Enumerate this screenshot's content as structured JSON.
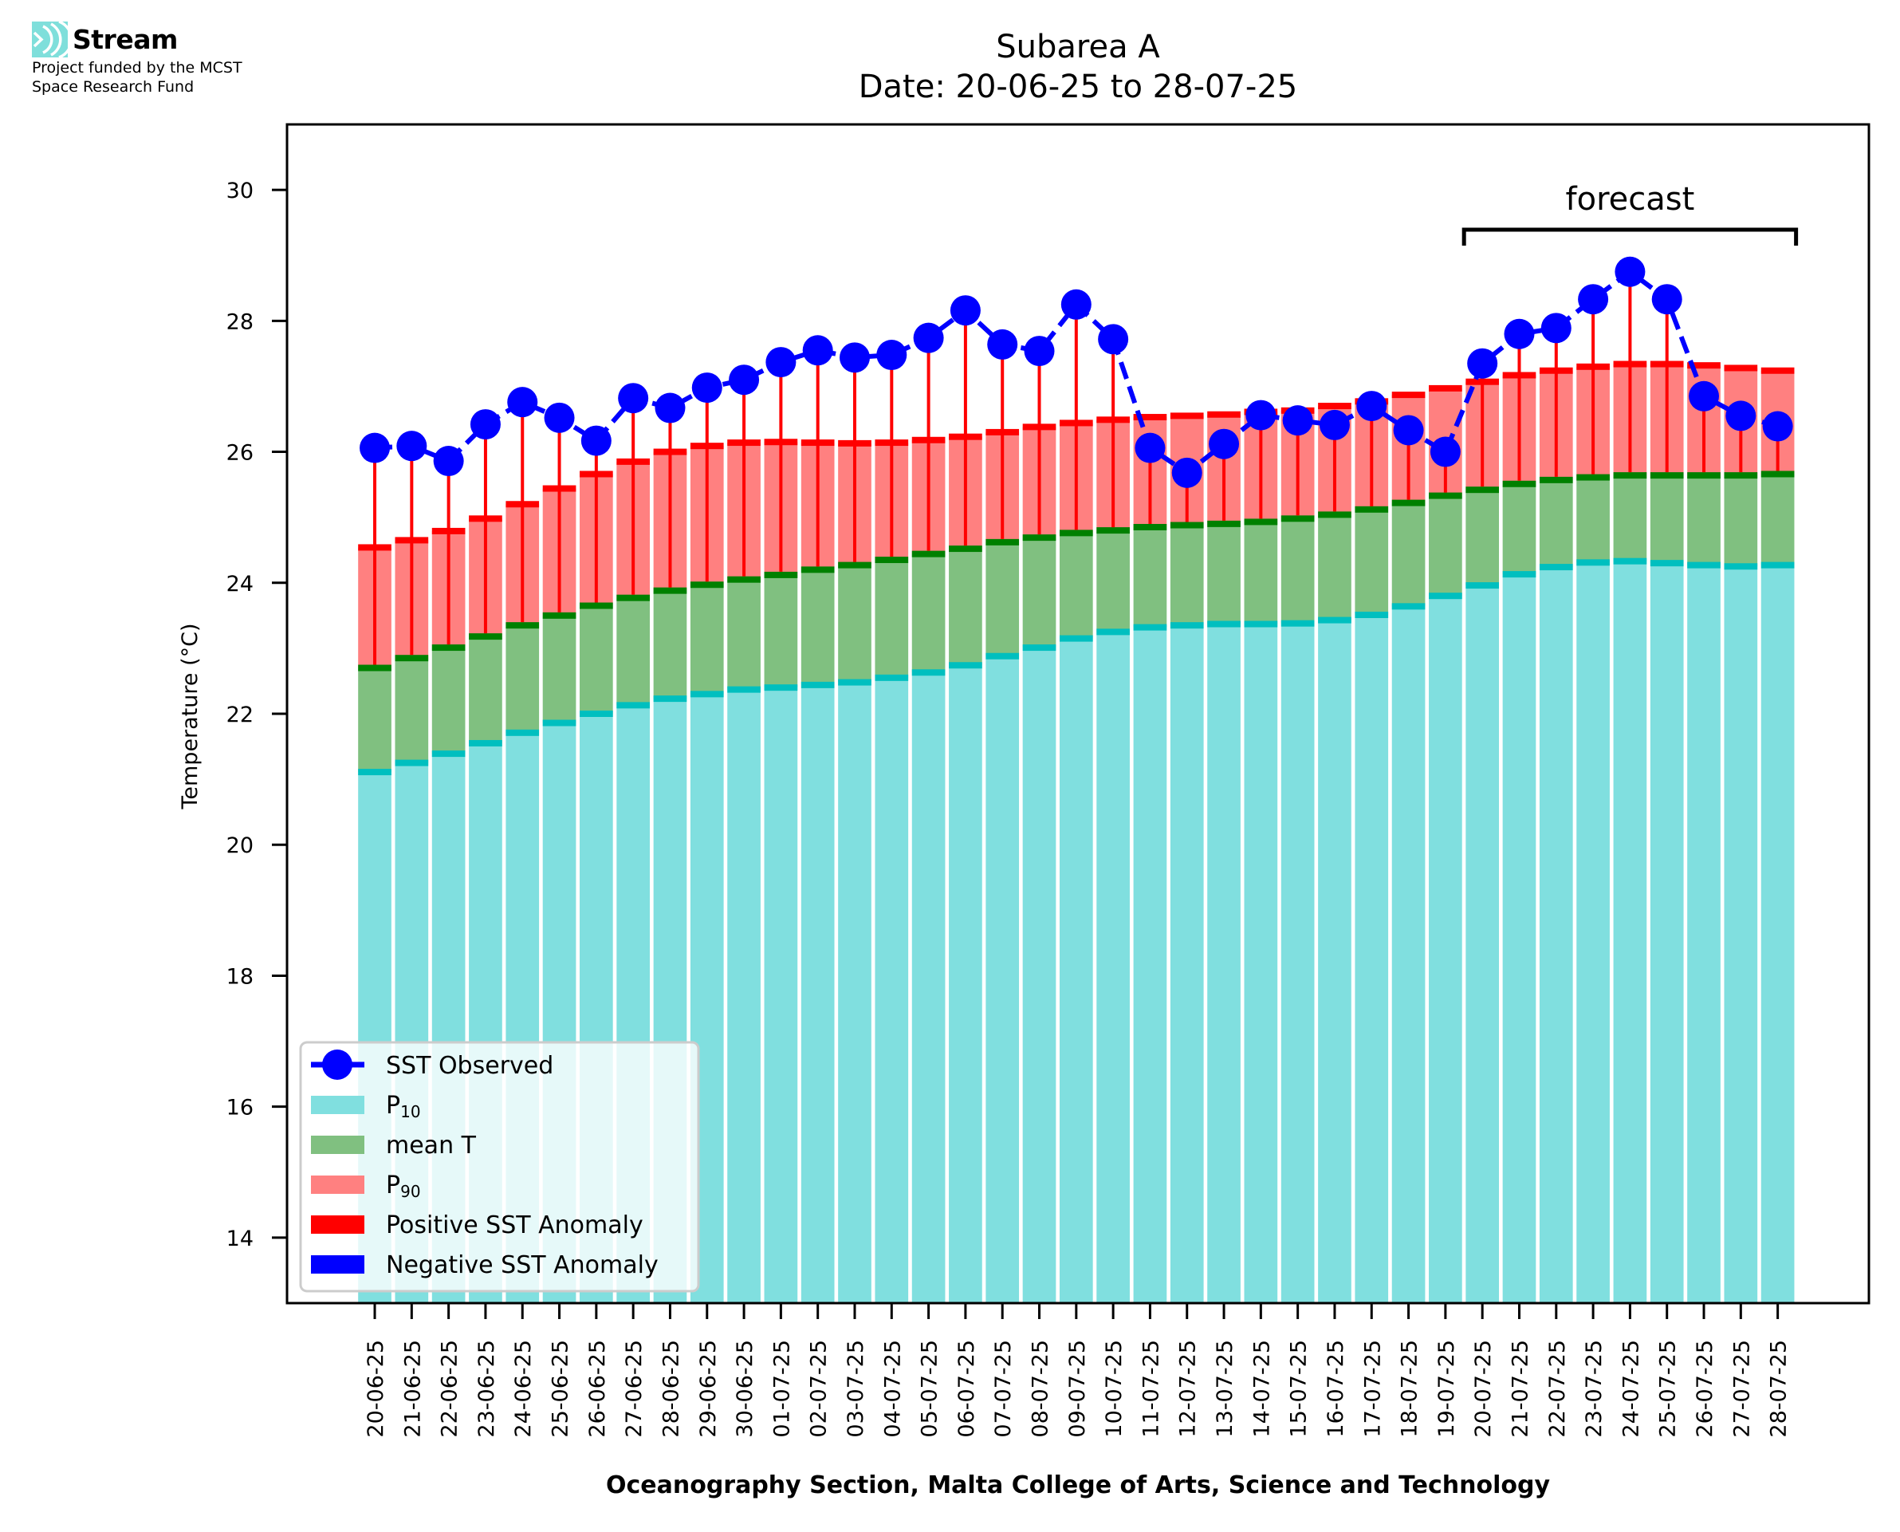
{
  "logo": {
    "icon": "stream-waves-icon",
    "name": "Stream",
    "funding_line1": "Project funded by the MCST",
    "funding_line2": "Space Research Fund"
  },
  "colors": {
    "p10": "#80DFDF",
    "p10_edge": "#00BFBF",
    "mean": "#80C080",
    "mean_edge": "#008000",
    "p90": "#FF8080",
    "p90_edge": "#FF0000",
    "positive_anomaly": "#FF0000",
    "negative_anomaly": "#0000FF",
    "sst": "#0000FF",
    "logo": "#7FDFDB"
  },
  "chart_data": {
    "type": "bar",
    "title": "Subarea A",
    "subtitle": "Date: 20-06-25 to 28-07-25",
    "xlabel": "Oceanography Section, Malta College of Arts, Science and Technology",
    "ylabel": "Temperature (°C)",
    "ylim": [
      13,
      31
    ],
    "yticks": [
      14,
      16,
      18,
      20,
      22,
      24,
      26,
      28,
      30
    ],
    "grid": false,
    "legend_position": "lower-left",
    "categories": [
      "20-06-25",
      "21-06-25",
      "22-06-25",
      "23-06-25",
      "24-06-25",
      "25-06-25",
      "26-06-25",
      "27-06-25",
      "28-06-25",
      "29-06-25",
      "30-06-25",
      "01-07-25",
      "02-07-25",
      "03-07-25",
      "04-07-25",
      "05-07-25",
      "06-07-25",
      "07-07-25",
      "08-07-25",
      "09-07-25",
      "10-07-25",
      "11-07-25",
      "12-07-25",
      "13-07-25",
      "14-07-25",
      "15-07-25",
      "16-07-25",
      "17-07-25",
      "18-07-25",
      "19-07-25",
      "20-07-25",
      "21-07-25",
      "22-07-25",
      "23-07-25",
      "24-07-25",
      "25-07-25",
      "26-07-25",
      "27-07-25",
      "28-07-25"
    ],
    "series": [
      {
        "name": "P10",
        "legend_main": "P",
        "legend_sub": "10",
        "kind": "bar",
        "values": [
          21.11,
          21.25,
          21.39,
          21.55,
          21.71,
          21.86,
          22.0,
          22.13,
          22.23,
          22.3,
          22.37,
          22.4,
          22.44,
          22.48,
          22.55,
          22.63,
          22.74,
          22.88,
          23.01,
          23.15,
          23.25,
          23.32,
          23.35,
          23.37,
          23.37,
          23.38,
          23.43,
          23.51,
          23.64,
          23.8,
          23.96,
          24.13,
          24.24,
          24.31,
          24.33,
          24.3,
          24.27,
          24.25,
          24.27
        ]
      },
      {
        "name": "mean T",
        "legend_main": "mean T",
        "legend_sub": "",
        "kind": "bar",
        "values": [
          22.7,
          22.85,
          23.01,
          23.18,
          23.35,
          23.5,
          23.65,
          23.77,
          23.88,
          23.97,
          24.05,
          24.12,
          24.2,
          24.27,
          24.35,
          24.44,
          24.52,
          24.62,
          24.69,
          24.76,
          24.8,
          24.85,
          24.88,
          24.9,
          24.93,
          24.98,
          25.04,
          25.12,
          25.22,
          25.33,
          25.42,
          25.51,
          25.57,
          25.61,
          25.64,
          25.64,
          25.64,
          25.64,
          25.66
        ]
      },
      {
        "name": "P90",
        "legend_main": "P",
        "legend_sub": "90",
        "kind": "bar",
        "values": [
          24.54,
          24.65,
          24.79,
          24.98,
          25.2,
          25.44,
          25.66,
          25.85,
          26.0,
          26.09,
          26.14,
          26.15,
          26.14,
          26.13,
          26.14,
          26.18,
          26.23,
          26.3,
          26.38,
          26.44,
          26.49,
          26.53,
          26.55,
          26.57,
          26.61,
          26.63,
          26.7,
          26.77,
          26.87,
          26.97,
          27.07,
          27.17,
          27.24,
          27.3,
          27.34,
          27.34,
          27.32,
          27.28,
          27.24
        ]
      },
      {
        "name": "SST Observed",
        "legend_main": "SST Observed",
        "legend_sub": "",
        "kind": "line",
        "values": [
          26.06,
          26.09,
          25.86,
          26.42,
          26.76,
          26.52,
          26.17,
          26.82,
          26.67,
          26.98,
          27.1,
          27.37,
          27.55,
          27.44,
          27.48,
          27.74,
          28.16,
          27.64,
          27.54,
          28.25,
          27.72,
          26.06,
          25.68,
          26.12,
          26.56,
          26.48,
          26.41,
          26.7,
          26.33,
          26.0,
          27.35,
          27.8,
          27.89,
          28.33,
          28.75,
          28.33,
          26.85,
          26.55,
          26.39
        ]
      }
    ],
    "legend": [
      {
        "label": "SST Observed",
        "sub": "",
        "type": "line-marker",
        "color_key": "sst"
      },
      {
        "label": "P",
        "sub": "10",
        "type": "patch",
        "color_key": "p10"
      },
      {
        "label": "mean T",
        "sub": "",
        "type": "patch",
        "color_key": "mean"
      },
      {
        "label": "P",
        "sub": "90",
        "type": "patch",
        "color_key": "p90"
      },
      {
        "label": "Positive SST Anomaly",
        "sub": "",
        "type": "patch",
        "color_key": "positive_anomaly"
      },
      {
        "label": "Negative SST Anomaly",
        "sub": "",
        "type": "patch",
        "color_key": "negative_anomaly"
      }
    ],
    "annotations": [
      {
        "text": "forecast",
        "type": "bracket",
        "from_category": "20-07-25",
        "to_category": "28-07-25"
      }
    ]
  }
}
